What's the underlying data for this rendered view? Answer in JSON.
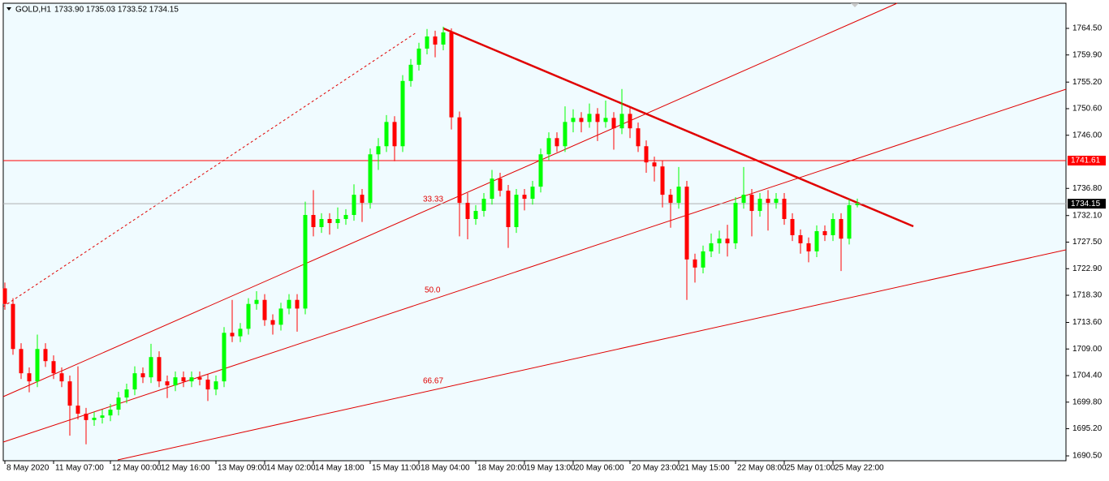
{
  "chart_data": {
    "type": "candlestick",
    "symbol": "GOLD,H1",
    "quote": "1733.90 1735.03 1733.52 1734.15",
    "categories": [
      "8 May 2020",
      null,
      null,
      null,
      null,
      null,
      "11 May 07:00",
      null,
      null,
      null,
      null,
      null,
      null,
      "12 May 00:00",
      null,
      null,
      null,
      null,
      null,
      "12 May 16:00",
      null,
      null,
      null,
      null,
      null,
      null,
      "13 May 09:00",
      null,
      null,
      null,
      null,
      null,
      "14 May 02:00",
      null,
      null,
      null,
      null,
      null,
      "14 May 18:00",
      null,
      null,
      null,
      null,
      null,
      null,
      "15 May 11:00",
      null,
      null,
      null,
      null,
      null,
      "18 May 04:00",
      null,
      null,
      null,
      null,
      null,
      null,
      "18 May 20:00",
      null,
      null,
      null,
      null,
      null,
      "19 May 13:00",
      null,
      null,
      null,
      null,
      null,
      "20 May 06:00",
      null,
      null,
      null,
      null,
      null,
      null,
      "20 May 23:00",
      null,
      null,
      null,
      null,
      null,
      "21 May 15:00",
      null,
      null,
      null,
      null,
      null,
      null,
      "22 May 08:00",
      null,
      null,
      null,
      null,
      null,
      "25 May 01:00",
      null,
      null,
      null,
      null,
      null,
      "25 May 22:00",
      null,
      null,
      null
    ],
    "up_color": "#00ff00",
    "down_color": "#ff0000",
    "open": [
      1719.5,
      1716.8,
      1709.0,
      1704.8,
      1703.4,
      1709.0,
      1706.9,
      1704.8,
      1703.4,
      1699.2,
      1697.8,
      1696.7,
      1697.1,
      1697.5,
      1698.5,
      1700.6,
      1702.0,
      1704.8,
      1704.1,
      1707.6,
      1703.4,
      1702.7,
      1704.1,
      1703.4,
      1704.1,
      1703.7,
      1702.0,
      1703.4,
      1711.8,
      1711.2,
      1712.5,
      1716.8,
      1717.5,
      1714.0,
      1713.2,
      1716.0,
      1717.5,
      1716.0,
      1732.2,
      1730.1,
      1731.5,
      1730.8,
      1731.5,
      1732.2,
      1735.7,
      1734.3,
      1742.7,
      1744.1,
      1748.3,
      1744.1,
      1755.4,
      1758.2,
      1761.0,
      1763.1,
      1761.7,
      1763.8,
      1749.1,
      1734.3,
      1731.5,
      1732.9,
      1735.0,
      1738.5,
      1736.4,
      1730.1,
      1735.7,
      1735.0,
      1737.1,
      1742.7,
      1745.5,
      1744.1,
      1748.3,
      1749.0,
      1748.3,
      1749.7,
      1748.3,
      1749.0,
      1747.2,
      1749.7,
      1747.2,
      1744.1,
      1741.3,
      1740.6,
      1735.7,
      1734.3,
      1737.1,
      1724.5,
      1723.1,
      1725.9,
      1727.3,
      1728.1,
      1727.3,
      1734.3,
      1735.7,
      1732.9,
      1735.0,
      1734.3,
      1735.0,
      1731.5,
      1728.7,
      1727.3,
      1725.9,
      1729.4,
      1728.7,
      1731.5,
      1728.1,
      1733.9
    ],
    "high": [
      1720.5,
      1717.8,
      1710.0,
      1705.8,
      1711.5,
      1710.0,
      1707.9,
      1705.8,
      1704.4,
      1706.0,
      1698.8,
      1698.1,
      1698.5,
      1699.5,
      1701.6,
      1703.0,
      1706.0,
      1705.8,
      1709.9,
      1708.6,
      1704.4,
      1705.1,
      1705.1,
      1705.1,
      1705.1,
      1704.7,
      1704.4,
      1712.8,
      1717.5,
      1713.5,
      1717.8,
      1719.0,
      1718.5,
      1715.0,
      1717.0,
      1718.5,
      1718.5,
      1734.5,
      1736.5,
      1732.5,
      1732.5,
      1733.5,
      1733.2,
      1737.5,
      1736.7,
      1743.7,
      1745.5,
      1749.5,
      1749.3,
      1756.4,
      1759.2,
      1762.0,
      1764.4,
      1764.1,
      1764.8,
      1764.5,
      1750.1,
      1736.0,
      1733.9,
      1736.0,
      1740.0,
      1739.5,
      1737.4,
      1736.7,
      1736.7,
      1738.1,
      1743.7,
      1746.5,
      1746.5,
      1751.0,
      1750.5,
      1750.0,
      1751.5,
      1750.7,
      1752.0,
      1750.0,
      1754.0,
      1750.7,
      1748.2,
      1745.1,
      1742.3,
      1741.6,
      1736.7,
      1740.5,
      1738.1,
      1725.5,
      1726.9,
      1729.0,
      1729.5,
      1730.5,
      1735.3,
      1740.5,
      1736.7,
      1736.0,
      1736.5,
      1736.0,
      1736.0,
      1732.5,
      1729.7,
      1728.3,
      1730.4,
      1730.4,
      1732.5,
      1732.5,
      1734.9,
      1735.03
    ],
    "low": [
      1715.8,
      1708.0,
      1703.8,
      1701.5,
      1702.4,
      1705.9,
      1703.8,
      1702.4,
      1694.0,
      1696.8,
      1692.5,
      1695.7,
      1696.1,
      1696.5,
      1697.5,
      1699.6,
      1701.0,
      1703.1,
      1703.1,
      1702.4,
      1700.5,
      1701.7,
      1702.4,
      1702.4,
      1702.7,
      1700.0,
      1701.0,
      1702.4,
      1710.2,
      1710.2,
      1711.5,
      1715.8,
      1713.0,
      1711.5,
      1712.2,
      1715.0,
      1712.0,
      1715.0,
      1728.5,
      1729.1,
      1728.8,
      1729.8,
      1730.5,
      1731.2,
      1731.0,
      1733.3,
      1740.0,
      1743.1,
      1741.5,
      1743.1,
      1754.4,
      1757.2,
      1760.0,
      1759.5,
      1760.7,
      1747.0,
      1728.5,
      1728.0,
      1730.5,
      1731.9,
      1734.0,
      1735.4,
      1726.5,
      1729.1,
      1733.0,
      1734.0,
      1736.1,
      1741.7,
      1743.1,
      1743.1,
      1746.5,
      1746.5,
      1747.3,
      1745.0,
      1747.3,
      1743.5,
      1746.2,
      1745.5,
      1743.1,
      1739.5,
      1738.0,
      1733.5,
      1730.0,
      1733.3,
      1717.5,
      1720.5,
      1722.1,
      1724.9,
      1725.5,
      1725.0,
      1726.3,
      1733.3,
      1728.5,
      1731.9,
      1729.5,
      1733.3,
      1730.5,
      1727.7,
      1725.5,
      1724.0,
      1724.9,
      1727.7,
      1727.7,
      1722.5,
      1727.1,
      1733.52
    ],
    "close": [
      1716.8,
      1709.0,
      1704.8,
      1703.4,
      1709.0,
      1706.9,
      1704.8,
      1703.4,
      1699.2,
      1697.8,
      1696.7,
      1697.1,
      1697.5,
      1698.5,
      1700.6,
      1702.0,
      1704.8,
      1704.1,
      1707.6,
      1703.4,
      1702.7,
      1704.1,
      1703.4,
      1704.1,
      1703.7,
      1702.0,
      1703.4,
      1711.8,
      1711.2,
      1712.5,
      1716.8,
      1717.5,
      1714.0,
      1713.2,
      1716.0,
      1717.5,
      1716.0,
      1732.2,
      1730.1,
      1731.5,
      1730.8,
      1731.5,
      1732.2,
      1735.7,
      1734.3,
      1742.7,
      1744.1,
      1748.3,
      1744.1,
      1755.4,
      1758.2,
      1761.0,
      1763.1,
      1761.7,
      1763.8,
      1749.1,
      1734.3,
      1731.5,
      1732.9,
      1735.0,
      1738.5,
      1736.4,
      1730.1,
      1735.7,
      1735.0,
      1737.1,
      1742.7,
      1745.5,
      1744.1,
      1748.3,
      1749.0,
      1748.3,
      1749.7,
      1748.3,
      1749.0,
      1747.2,
      1749.7,
      1747.2,
      1744.1,
      1741.3,
      1740.6,
      1735.7,
      1734.3,
      1737.1,
      1724.5,
      1723.1,
      1725.9,
      1727.3,
      1728.1,
      1727.3,
      1734.3,
      1735.7,
      1732.9,
      1735.0,
      1734.3,
      1735.0,
      1731.5,
      1728.7,
      1727.3,
      1725.9,
      1729.4,
      1728.7,
      1731.5,
      1728.1,
      1733.9,
      1734.15
    ],
    "ylim": [
      1689.66,
      1768.85
    ],
    "yticks": [
      {
        "value": 1764.5,
        "label": "1764.50"
      },
      {
        "value": 1759.9,
        "label": "1759.90"
      },
      {
        "value": 1755.2,
        "label": "1755.20"
      },
      {
        "value": 1750.6,
        "label": "1750.60"
      },
      {
        "value": 1746,
        "label": "1746.00"
      },
      {
        "value": 1736.8,
        "label": "1736.80"
      },
      {
        "value": 1732.1,
        "label": "1732.10"
      },
      {
        "value": 1727.5,
        "label": "1727.50"
      },
      {
        "value": 1722.9,
        "label": "1722.90"
      },
      {
        "value": 1718.3,
        "label": "1718.30"
      },
      {
        "value": 1713.6,
        "label": "1713.60"
      },
      {
        "value": 1709,
        "label": "1709.00"
      },
      {
        "value": 1704.4,
        "label": "1704.40"
      },
      {
        "value": 1699.8,
        "label": "1699.80"
      },
      {
        "value": 1695.2,
        "label": "1695.20"
      },
      {
        "value": 1690.5,
        "label": "1690.50"
      }
    ],
    "hline": 1741.61,
    "hline_color": "#ff0000",
    "price_line": 1734.15,
    "annotations": [
      "33.33",
      "50.0",
      "66.67"
    ]
  }
}
